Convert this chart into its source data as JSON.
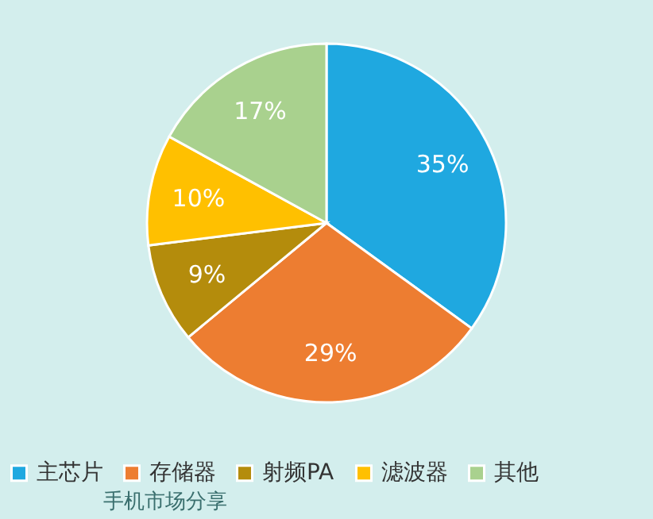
{
  "chart_data": {
    "type": "pie",
    "categories": [
      "主芯片",
      "存储器",
      "射频PA",
      "滤波器",
      "其他"
    ],
    "values": [
      35,
      29,
      9,
      10,
      17
    ],
    "value_labels": [
      "35%",
      "29%",
      "9%",
      "10%",
      "17%"
    ],
    "colors": [
      "#1fa8e0",
      "#ed7d31",
      "#b48c0c",
      "#ffc000",
      "#a9d18e"
    ],
    "legend": "bottom",
    "annotations": [
      "手机市场分享"
    ]
  }
}
